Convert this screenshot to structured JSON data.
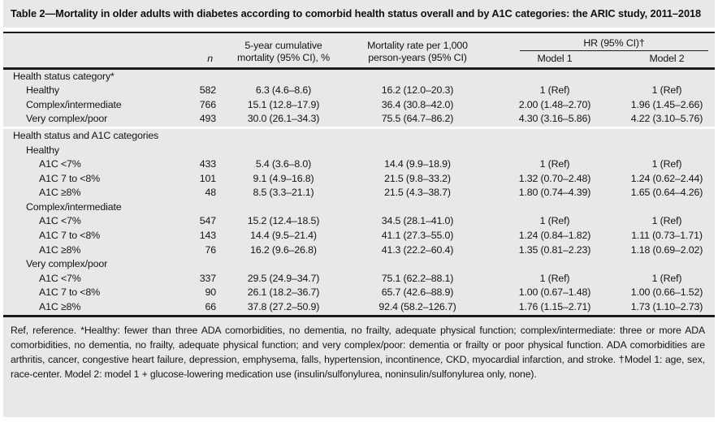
{
  "title": "Table 2—Mortality in older adults with diabetes according to comorbid health status overall and by A1C categories: the ARIC study, 2011–2018",
  "colors": {
    "panel_bg": "#e7e8e9",
    "text": "#141414",
    "rule": "#1a1a1a",
    "section_separator": "#ffffff"
  },
  "table": {
    "columns": {
      "n_label": "n",
      "cum_line1": "5-year cumulative",
      "cum_line2": "mortality (95% CI), %",
      "rate_line1": "Mortality rate per 1,000",
      "rate_line2": "person-years (95% CI)",
      "hr_spanner_label": "HR (95% CI)†",
      "model1_label": "Model 1",
      "model2_label": "Model 2"
    },
    "rows": [
      {
        "type": "section",
        "indent": 0,
        "label": "Health status category*"
      },
      {
        "type": "data",
        "indent": 1,
        "label": "Healthy",
        "n": "582",
        "cum": "6.3 (4.6–8.6)",
        "rate": "16.2 (12.0–20.3)",
        "m1": "1 (Ref)",
        "m2": "1 (Ref)"
      },
      {
        "type": "data",
        "indent": 1,
        "label": "Complex/intermediate",
        "n": "766",
        "cum": "15.1 (12.8–17.9)",
        "rate": "36.4 (30.8–42.0)",
        "m1": "2.00 (1.48–2.70)",
        "m2": "1.96 (1.45–2.66)"
      },
      {
        "type": "data",
        "indent": 1,
        "label": "Very complex/poor",
        "n": "493",
        "cum": "30.0 (26.1–34.3)",
        "rate": "75.5 (64.7–86.2)",
        "m1": "4.30 (3.16–5.86)",
        "m2": "4.22 (3.10–5.76)"
      },
      {
        "type": "section",
        "indent": 0,
        "label": "Health status and A1C categories",
        "separator_before": true
      },
      {
        "type": "subsection",
        "indent": 1,
        "label": "Healthy"
      },
      {
        "type": "data",
        "indent": 2,
        "label": "A1C <7%",
        "n": "433",
        "cum": "5.4 (3.6–8.0)",
        "rate": "14.4 (9.9–18.9)",
        "m1": "1 (Ref)",
        "m2": "1 (Ref)"
      },
      {
        "type": "data",
        "indent": 2,
        "label": "A1C 7 to <8%",
        "n": "101",
        "cum": "9.1 (4.9–16.8)",
        "rate": "21.5 (9.8–33.2)",
        "m1": "1.32 (0.70–2.48)",
        "m2": "1.24 (0.62–2.44)"
      },
      {
        "type": "data",
        "indent": 2,
        "label": "A1C ≥8%",
        "n": "48",
        "cum": "8.5 (3.3–21.1)",
        "rate": "21.5 (4.3–38.7)",
        "m1": "1.80 (0.74–4.39)",
        "m2": "1.65 (0.64–4.26)"
      },
      {
        "type": "subsection",
        "indent": 1,
        "label": "Complex/intermediate"
      },
      {
        "type": "data",
        "indent": 2,
        "label": "A1C <7%",
        "n": "547",
        "cum": "15.2 (12.4–18.5)",
        "rate": "34.5 (28.1–41.0)",
        "m1": "1 (Ref)",
        "m2": "1 (Ref)"
      },
      {
        "type": "data",
        "indent": 2,
        "label": "A1C 7 to <8%",
        "n": "143",
        "cum": "14.4 (9.5–21.4)",
        "rate": "41.1 (27.3–55.0)",
        "m1": "1.24 (0.84–1.82)",
        "m2": "1.11 (0.73–1.71)"
      },
      {
        "type": "data",
        "indent": 2,
        "label": "A1C ≥8%",
        "n": "76",
        "cum": "16.2 (9.6–26.8)",
        "rate": "41.3 (22.2–60.4)",
        "m1": "1.35 (0.81–2.23)",
        "m2": "1.18 (0.69–2.02)"
      },
      {
        "type": "subsection",
        "indent": 1,
        "label": "Very complex/poor"
      },
      {
        "type": "data",
        "indent": 2,
        "label": "A1C <7%",
        "n": "337",
        "cum": "29.5 (24.9–34.7)",
        "rate": "75.1 (62.2–88.1)",
        "m1": "1 (Ref)",
        "m2": "1 (Ref)"
      },
      {
        "type": "data",
        "indent": 2,
        "label": "A1C 7 to <8%",
        "n": "90",
        "cum": "26.1 (18.2–36.7)",
        "rate": "65.7 (42.6–88.9)",
        "m1": "1.00 (0.67–1.48)",
        "m2": "1.00 (0.66–1.52)"
      },
      {
        "type": "data",
        "indent": 2,
        "label": "A1C ≥8%",
        "n": "66",
        "cum": "37.8 (27.2–50.9)",
        "rate": "92.4 (58.2–126.7)",
        "m1": "1.76 (1.15–2.71)",
        "m2": "1.73 (1.10–2.73)"
      }
    ]
  },
  "footnote": "Ref, reference. *Healthy: fewer than three ADA comorbidities, no dementia, no frailty, adequate physical function; complex/intermediate: three or more ADA comorbidities, no dementia, no frailty, adequate physical function; and very complex/poor: dementia or frailty or poor physical function. ADA comorbidities are arthritis, cancer, congestive heart failure, depression, emphysema, falls, hypertension, incontinence, CKD, myocardial infarction, and stroke. †Model 1: age, sex, race-center. Model 2: model 1 + glucose-lowering medication use (insulin/sulfonylurea, noninsulin/sulfonylurea only, none)."
}
